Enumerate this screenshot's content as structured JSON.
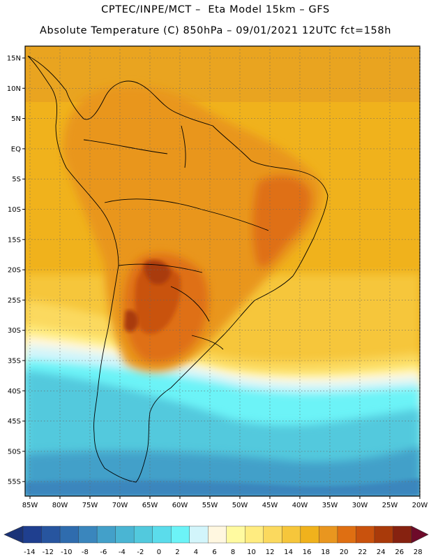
{
  "header": {
    "line1": "CPTEC/INPE/MCT –  Eta Model 15km – GFS",
    "line2": "Absolute Temperature (C) 850hPa – 09/01/2021 12UTC fct=158h"
  },
  "axes": {
    "lat_labels": [
      "15N",
      "10N",
      "5N",
      "EQ",
      "5S",
      "10S",
      "15S",
      "20S",
      "25S",
      "30S",
      "35S",
      "40S",
      "45S",
      "50S",
      "55S"
    ],
    "lon_labels": [
      "85W",
      "80W",
      "75W",
      "70W",
      "65W",
      "60W",
      "55W",
      "50W",
      "45W",
      "40W",
      "35W",
      "30W",
      "25W",
      "20W"
    ]
  },
  "colorbar": {
    "ticks": [
      "-14",
      "-12",
      "-10",
      "-8",
      "-6",
      "-4",
      "-2",
      "0",
      "2",
      "4",
      "6",
      "8",
      "10",
      "12",
      "14",
      "16",
      "18",
      "20",
      "22",
      "24",
      "26",
      "28"
    ],
    "colors": [
      "#1f3f8f",
      "#27559f",
      "#2f6cae",
      "#3a86bd",
      "#43a0c9",
      "#4ab5d3",
      "#52c9dd",
      "#5bdceb",
      "#6cf3f7",
      "#d2f5fb",
      "#fff7e0",
      "#fffaa0",
      "#ffec80",
      "#fbd95e",
      "#f6c63b",
      "#f0b21c",
      "#e9961f",
      "#df6f12",
      "#c9520d",
      "#a93a0a",
      "#862210"
    ],
    "low_arrow_color": "#1a3378",
    "high_arrow_color": "#6e0a2a"
  }
}
